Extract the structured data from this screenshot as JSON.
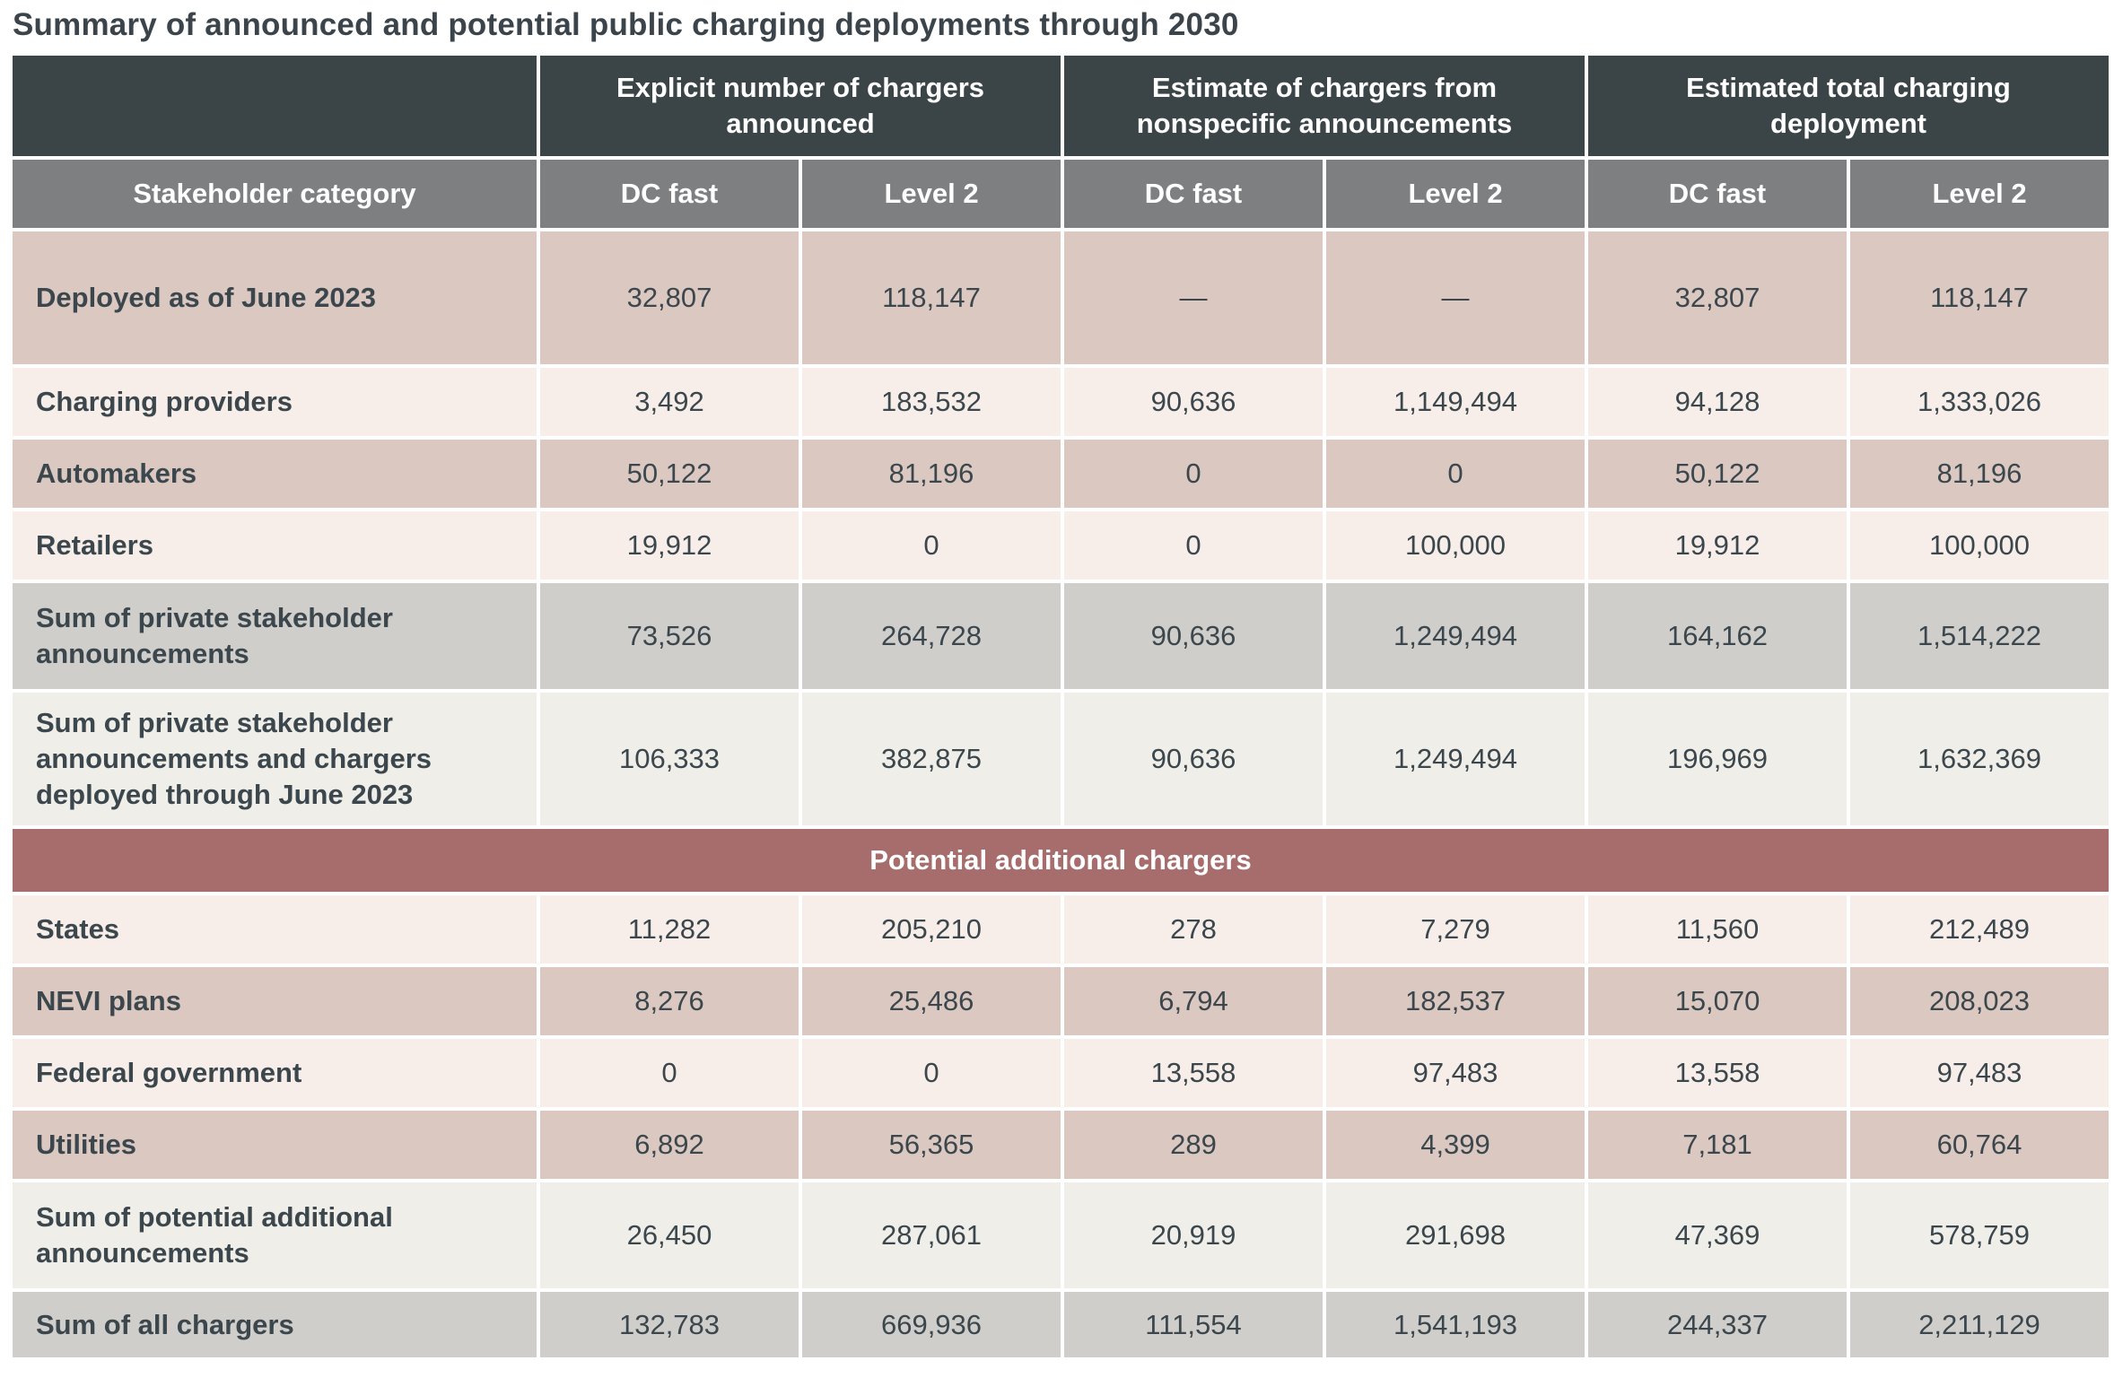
{
  "title": "Summary of announced and potential public charging deployments through 2030",
  "colors": {
    "header_dark": "#3b4548",
    "header_gray": "#7d7f81",
    "row_pink": "#dbc8c1",
    "row_light_pink": "#f7eee9",
    "row_cream": "#f0eee9",
    "row_sum_gray": "#cfcecb",
    "banner_red": "#a76c6c",
    "text_dark": "#3b474d",
    "text_white": "#ffffff"
  },
  "chart_data": {
    "type": "table",
    "title": "Summary of announced and potential public charging deployments through 2030",
    "column_groups": [
      "Explicit number of chargers announced",
      "Estimate of chargers from nonspecific announcements",
      "Estimated total charging deployment"
    ],
    "columns": [
      "Stakeholder category",
      "DC fast",
      "Level 2",
      "DC fast",
      "Level 2",
      "DC fast",
      "Level 2"
    ],
    "section_banner": "Potential additional chargers",
    "rows": [
      {
        "label": "Deployed as of June 2023",
        "values": [
          "32,807",
          "118,147",
          "—",
          "—",
          "32,807",
          "118,147"
        ]
      },
      {
        "label": "Charging providers",
        "values": [
          "3,492",
          "183,532",
          "90,636",
          "1,149,494",
          "94,128",
          "1,333,026"
        ]
      },
      {
        "label": "Automakers",
        "values": [
          "50,122",
          "81,196",
          "0",
          "0",
          "50,122",
          "81,196"
        ]
      },
      {
        "label": "Retailers",
        "values": [
          "19,912",
          "0",
          "0",
          "100,000",
          "19,912",
          "100,000"
        ]
      },
      {
        "label": "Sum of private stakeholder announcements",
        "values": [
          "73,526",
          "264,728",
          "90,636",
          "1,249,494",
          "164,162",
          "1,514,222"
        ]
      },
      {
        "label": "Sum of private stakeholder announcements and chargers deployed through June 2023",
        "values": [
          "106,333",
          "382,875",
          "90,636",
          "1,249,494",
          "196,969",
          "1,632,369"
        ]
      },
      {
        "label": "States",
        "values": [
          "11,282",
          "205,210",
          "278",
          "7,279",
          "11,560",
          "212,489"
        ]
      },
      {
        "label": "NEVI plans",
        "values": [
          "8,276",
          "25,486",
          "6,794",
          "182,537",
          "15,070",
          "208,023"
        ]
      },
      {
        "label": "Federal government",
        "values": [
          "0",
          "0",
          "13,558",
          "97,483",
          "13,558",
          "97,483"
        ]
      },
      {
        "label": "Utilities",
        "values": [
          "6,892",
          "56,365",
          "289",
          "4,399",
          "7,181",
          "60,764"
        ]
      },
      {
        "label": "Sum of potential additional announcements",
        "values": [
          "26,450",
          "287,061",
          "20,919",
          "291,698",
          "47,369",
          "578,759"
        ]
      },
      {
        "label": "Sum of all chargers",
        "values": [
          "132,783",
          "669,936",
          "111,554",
          "1,541,193",
          "244,337",
          "2,211,129"
        ]
      }
    ]
  }
}
